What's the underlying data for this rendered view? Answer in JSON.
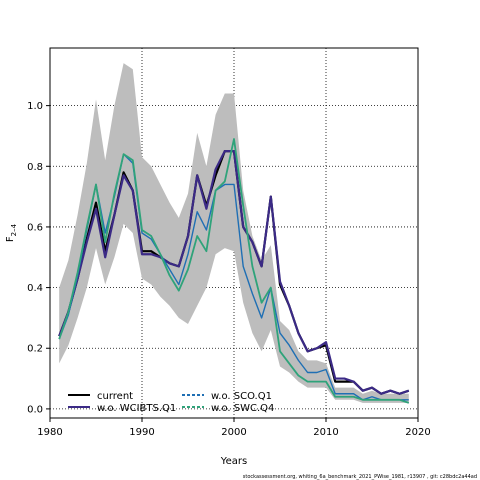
{
  "chart_data": {
    "type": "line",
    "xlabel": "Years",
    "ylabel": "F",
    "ylabel_sub": "2–4",
    "xlim": [
      1980,
      2020
    ],
    "ylim": [
      -0.03,
      1.19
    ],
    "xticks": [
      "1980",
      "1990",
      "2000",
      "2010",
      "2020"
    ],
    "yticks": [
      "0.0",
      "0.2",
      "0.4",
      "0.6",
      "0.8",
      "1.0"
    ],
    "grid": true,
    "legend_position": "bottom-left",
    "x": [
      1981,
      1982,
      1983,
      1984,
      1985,
      1986,
      1987,
      1988,
      1989,
      1990,
      1991,
      1992,
      1993,
      1994,
      1995,
      1996,
      1997,
      1998,
      1999,
      2000,
      2001,
      2002,
      2003,
      2004,
      2005,
      2006,
      2007,
      2008,
      2009,
      2010,
      2011,
      2012,
      2013,
      2014,
      2015,
      2016,
      2017,
      2018,
      2019
    ],
    "band": {
      "upper": [
        0.4,
        0.49,
        0.64,
        0.81,
        1.02,
        0.82,
        1.0,
        1.14,
        1.12,
        0.83,
        0.8,
        0.74,
        0.68,
        0.63,
        0.71,
        0.91,
        0.8,
        0.97,
        1.04,
        1.04,
        0.72,
        0.57,
        0.49,
        0.54,
        0.29,
        0.26,
        0.19,
        0.16,
        0.16,
        0.15,
        0.07,
        0.07,
        0.07,
        0.05,
        0.06,
        0.05,
        0.05,
        0.05,
        0.05
      ],
      "lower": [
        0.15,
        0.21,
        0.3,
        0.4,
        0.53,
        0.41,
        0.5,
        0.61,
        0.58,
        0.43,
        0.41,
        0.37,
        0.34,
        0.3,
        0.28,
        0.34,
        0.4,
        0.51,
        0.53,
        0.52,
        0.35,
        0.25,
        0.19,
        0.26,
        0.14,
        0.12,
        0.09,
        0.07,
        0.07,
        0.07,
        0.03,
        0.03,
        0.03,
        0.02,
        0.02,
        0.02,
        0.02,
        0.02,
        0.02
      ]
    },
    "series": [
      {
        "name": "current",
        "color": "#000000",
        "values": [
          0.24,
          0.32,
          0.43,
          0.56,
          0.68,
          0.52,
          0.64,
          0.78,
          0.72,
          0.52,
          0.52,
          0.5,
          0.48,
          0.47,
          0.57,
          0.77,
          0.67,
          0.77,
          0.85,
          0.85,
          0.6,
          0.55,
          0.47,
          0.7,
          0.41,
          0.34,
          0.25,
          0.19,
          0.2,
          0.21,
          0.09,
          0.09,
          0.09,
          0.06,
          0.07,
          0.05,
          0.06,
          0.05,
          0.06
        ]
      },
      {
        "name": "w.o. WCIBTS.Q1",
        "color": "#3b2a86",
        "values": [
          0.24,
          0.32,
          0.43,
          0.55,
          0.66,
          0.5,
          0.64,
          0.77,
          0.72,
          0.51,
          0.51,
          0.5,
          0.48,
          0.47,
          0.57,
          0.77,
          0.66,
          0.79,
          0.85,
          0.85,
          0.6,
          0.55,
          0.47,
          0.7,
          0.42,
          0.34,
          0.25,
          0.19,
          0.2,
          0.22,
          0.1,
          0.1,
          0.09,
          0.06,
          0.07,
          0.05,
          0.06,
          0.05,
          0.06
        ]
      },
      {
        "name": "w.o. SCO.Q1",
        "color": "#1f6fb4",
        "values": [
          0.23,
          0.31,
          0.44,
          0.59,
          0.74,
          0.58,
          0.7,
          0.84,
          0.81,
          0.58,
          0.56,
          0.51,
          0.46,
          0.41,
          0.51,
          0.65,
          0.59,
          0.72,
          0.74,
          0.74,
          0.47,
          0.38,
          0.3,
          0.4,
          0.25,
          0.21,
          0.16,
          0.12,
          0.12,
          0.13,
          0.05,
          0.05,
          0.05,
          0.03,
          0.04,
          0.03,
          0.03,
          0.03,
          0.03
        ]
      },
      {
        "name": "w.o. SWC.Q4",
        "color": "#2fa37a",
        "values": [
          0.23,
          0.32,
          0.45,
          0.6,
          0.74,
          0.55,
          0.71,
          0.84,
          0.82,
          0.59,
          0.57,
          0.51,
          0.44,
          0.39,
          0.46,
          0.57,
          0.52,
          0.72,
          0.75,
          0.89,
          0.67,
          0.47,
          0.35,
          0.4,
          0.19,
          0.15,
          0.11,
          0.09,
          0.09,
          0.09,
          0.04,
          0.04,
          0.04,
          0.03,
          0.03,
          0.03,
          0.03,
          0.03,
          0.02
        ]
      }
    ]
  },
  "legend": [
    {
      "label": "current",
      "style": "current"
    },
    {
      "label": "w.o. WCIBTS.Q1",
      "style": "wcibts"
    },
    {
      "label": "w.o. SCO.Q1",
      "style": "sco"
    },
    {
      "label": "w.o. SWC.Q4",
      "style": "swc"
    }
  ],
  "footer": "stockassessment.org, whiting_6a_benchmark_2021_PWise_1981, r13907 , git: c28bdc2a44ad"
}
